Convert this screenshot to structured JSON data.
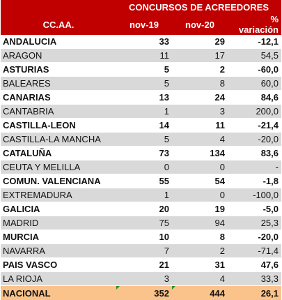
{
  "header": {
    "group_title": "CONCURSOS DE ACREEDORES",
    "col_region": "CC.AA.",
    "col_a": "nov-19",
    "col_b": "nov-20",
    "col_pct": "% variación"
  },
  "rows": [
    {
      "name": "ANDALUCIA",
      "a": "33",
      "b": "29",
      "pct": "-12,1",
      "bold": true
    },
    {
      "name": "ARAGON",
      "a": "11",
      "b": "17",
      "pct": "54,5",
      "bold": false
    },
    {
      "name": "ASTURIAS",
      "a": "5",
      "b": "2",
      "pct": "-60,0",
      "bold": true
    },
    {
      "name": "BALEARES",
      "a": "5",
      "b": "8",
      "pct": "60,0",
      "bold": false
    },
    {
      "name": "CANARIAS",
      "a": "13",
      "b": "24",
      "pct": "84,6",
      "bold": true
    },
    {
      "name": "CANTABRIA",
      "a": "1",
      "b": "3",
      "pct": "200,0",
      "bold": false
    },
    {
      "name": "CASTILLA-LEON",
      "a": "14",
      "b": "11",
      "pct": "-21,4",
      "bold": true
    },
    {
      "name": "CASTILLA-LA MANCHA",
      "a": "5",
      "b": "4",
      "pct": "-20,0",
      "bold": false
    },
    {
      "name": "CATALUÑA",
      "a": "73",
      "b": "134",
      "pct": "83,6",
      "bold": true
    },
    {
      "name": "CEUTA Y MELILLA",
      "a": "0",
      "b": "0",
      "pct": "-",
      "bold": false
    },
    {
      "name": "COMUN. VALENCIANA",
      "a": "55",
      "b": "54",
      "pct": "-1,8",
      "bold": true
    },
    {
      "name": "EXTREMADURA",
      "a": "1",
      "b": "0",
      "pct": "-100,0",
      "bold": false
    },
    {
      "name": "GALICIA",
      "a": "20",
      "b": "19",
      "pct": "-5,0",
      "bold": true
    },
    {
      "name": "MADRID",
      "a": "75",
      "b": "94",
      "pct": "25,3",
      "bold": false
    },
    {
      "name": "MURCIA",
      "a": "10",
      "b": "8",
      "pct": "-20,0",
      "bold": true
    },
    {
      "name": "NAVARRA",
      "a": "7",
      "b": "2",
      "pct": "-71,4",
      "bold": false
    },
    {
      "name": "PAIS VASCO",
      "a": "21",
      "b": "31",
      "pct": "47,6",
      "bold": true
    },
    {
      "name": "LA RIOJA",
      "a": "3",
      "b": "4",
      "pct": "33,3",
      "bold": false
    }
  ],
  "total": {
    "name": "NACIONAL",
    "a": "352",
    "b": "444",
    "pct": "26,1"
  },
  "colors": {
    "header_bg": "#c00000",
    "header_text": "#ffffff",
    "stripe": "#d9d9d9",
    "total_bg": "#fac38b"
  }
}
